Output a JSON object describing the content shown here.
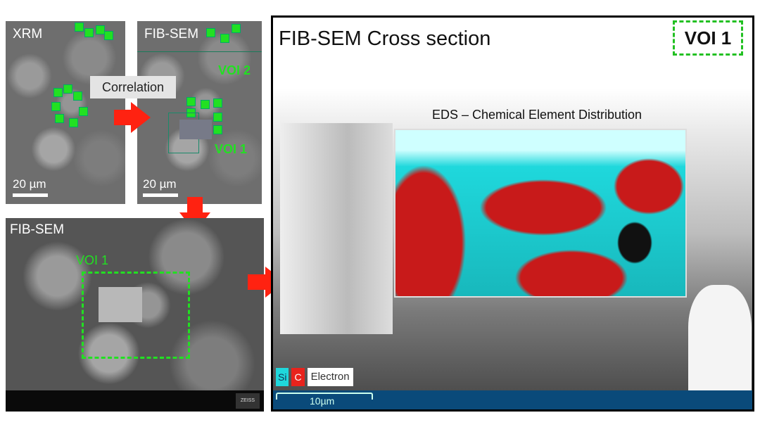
{
  "panels": {
    "xrm": {
      "label": "XRM",
      "scale": "20 µm"
    },
    "fib_sem_top": {
      "label": "FIB-SEM",
      "voi2": "VOI 2",
      "voi1": "VOI 1",
      "scale": "20 µm"
    },
    "correlation": "Correlation",
    "fib_sem_bottom": {
      "label": "FIB-SEM",
      "voi1": "VOI 1",
      "brand": "ZEISS"
    },
    "cross_section": {
      "title": "FIB-SEM Cross section",
      "voi": "VOI 1",
      "eds_title": "EDS – Chemical Element Distribution",
      "legend": [
        {
          "label": "Si",
          "color": "#1fd8dc"
        },
        {
          "label": "C",
          "color": "#e8231c"
        },
        {
          "label": "Electron",
          "color": "#ffffff"
        }
      ],
      "scale": "10µm"
    }
  },
  "colors": {
    "arrow": "#f21d10",
    "voi_green": "#22e022",
    "scalebar_blue": "#0a4a7a"
  }
}
